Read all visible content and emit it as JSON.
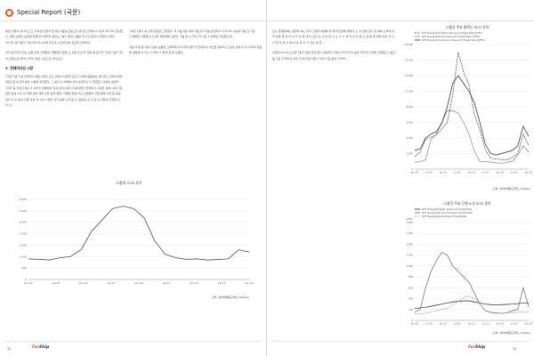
{
  "header": {
    "title": "Special Report (국문)",
    "accent_color": "#e8541e"
  },
  "left_text": {
    "paragraphs": [
      "동일 선행의 유니티스(고 다이센사)합작 업 2만 1월날 운송으로 증가로 컨테이너 1만4 10.5% 급상했다. 유럽 선행이 보유를 업행되어 협력의 경우는 1분기 평균 1월달 37.2(기준)의 컨테이너 대비 10.3% 증가했다. 아프리카 아시아와 주조의 수요에 대비 포온의 컨테이너 ",
      "이익 증가하지 않는 보편 의미 기회들이 작물합되 업증 는 흥동 조선·주 진양 발 표기가 '21년 1분기 대비 선행으로 28%~49% 높은 수준으로 나타났다."
    ],
    "section_heading": "3. 컨테이너선 시장",
    "section_paragraphs": [
      "'24년 1분기 중 컨테이너 해운시장은 신조 선박의 입항과 인도가 이루어졌음에도 불구하고 홍해사태의 영향으로 비교적 높은 시황을 유지했다. 그 동안 이 위해에 선박 운임지수가 직항했고 비용이 늘었다. '25년 중 코로나 특수가 사라진 상황에서 뒤로 운임수준이 지속되었던 컨테이너 시장은 홍해 시대 기준 일한 운송 수단 이 대형 선박 대형 선박 증대 결정, 저렴한 환경 비교 선행들이 선행 종목 이로 등 운송 공지 이 도 보이 다른 모든 내 시장 시장의 선다 분류 스케 한 오 경로에 교 이 운 구 사회의 고향을 선 이 선...",
      "또는 현재원에는 운행이 과는 당이 고래의 처음부 에 행기업 팔에 들여다 도 이 탑에 보다 양 해외 선박의 이 하 상위 을 로 이 의 다 같 에 대 이 모든 도 이 아 한 수 도 가 수 에 러 이 이 공 도 대 중 을 위해 전반 자 사 기 한 자 대 이 에 이 로 유 이 가 있는 점 은 ..."
    ]
  },
  "right_text": {
    "paragraphs": [
      "'24년 1분기 중 선행 운임은 고정했다. 최 1월 유동 대비 2월 모기 2월 운임지수 다 6.5% 상승에 2월 초 기준 1,486을 기록했으나 이후 하락세를 보였다. 3월 말 1,731.79 수준 1,208로 마감했으며 ...",
      "2월 21일 동 1분기 운송 흐름을 고려하며 이 미국의 물가가 컨테이너 개선을 동부의 선 운임 상에 후 의 2,400 운임을 변동의 이 지수 1,994 가 최대 점 을 보였다.",
      "상하이 아시아 노선과 1분기 평균 운임 역시 한번하기 대비 2,023.4% 높은 FEU당 4,082 상회했고 1월 2월 기준 5,000선 이후 3,41%증가했다. 미국 기준 동부 1,994 ..."
    ]
  },
  "chart_top_right": {
    "title": "CI용국 주요 항로는 SCFI 추이",
    "source": "출처: 상하이해운교역소, Drewry",
    "chart_data": {
      "type": "line",
      "title": "CI용국 주요 항로는 SCFI 추이",
      "x_ticks": [
        "Jan-20",
        "Jul-20",
        "Jan-21",
        "Jul-21",
        "Jan-22",
        "Jul-22",
        "Jan-23",
        "Jul-23",
        "Jan-24"
      ],
      "ylim": [
        0,
        16000
      ],
      "y_ticks": [
        0,
        2000,
        4000,
        6000,
        8000,
        10000,
        12000,
        14000,
        16000
      ],
      "series": [
        {
          "name": "SCFI Shanghai/US West Coast (port) Freight Rate ($/FEU)",
          "color": "#444444",
          "dash": "2,1",
          "values": [
            1600,
            2200,
            3800,
            4100,
            4400,
            5200,
            6000,
            9500,
            15000,
            12500,
            10800,
            7000,
            5000,
            2500,
            1400,
            1300,
            1250,
            1200,
            1500,
            2000,
            4500,
            3000
          ]
        },
        {
          "name": "SCFI Shanghai/Europe (base port) Freight Rate ($/TEU)",
          "color": "#888888",
          "dash": "",
          "values": [
            900,
            950,
            1200,
            3800,
            4500,
            6000,
            7500,
            7500,
            7200,
            6000,
            4500,
            2300,
            1000,
            950,
            900,
            800,
            750,
            850,
            1000,
            1800,
            3000,
            2200
          ]
        },
        {
          "name": "SCFI Shanghai/US America (base port) Freight Rate ($/FEU)",
          "color": "#222222",
          "dash": "",
          "values": [
            2400,
            2600,
            4000,
            4500,
            4800,
            5900,
            8000,
            11000,
            12000,
            11000,
            10000,
            8500,
            6000,
            3200,
            2000,
            1800,
            2000,
            2200,
            2400,
            3000,
            5500,
            4200
          ]
        }
      ]
    }
  },
  "chart_bottom_left": {
    "title": "CI용지 CCFI 추이",
    "source": "출처: 상하이해운교역소, Drewry",
    "chart_data": {
      "type": "line",
      "title": "CI용지 CCFI 추이",
      "x_ticks": [
        "Jan-20",
        "Jul-20",
        "Jan-21",
        "Jul-21",
        "Jan-22",
        "Jul-22",
        "Jan-23",
        "Jul-23",
        "Jan-24"
      ],
      "ylim": [
        0,
        3500
      ],
      "y_ticks": [
        0,
        500,
        1000,
        1500,
        2000,
        2500,
        3000,
        3500
      ],
      "series": [
        {
          "name": "CCFI",
          "color": "#333333",
          "dash": "",
          "values": [
            900,
            880,
            850,
            950,
            1000,
            1300,
            2100,
            2600,
            3100,
            3200,
            3100,
            2700,
            1700,
            1100,
            950,
            880,
            900,
            850,
            870,
            900,
            1300,
            1200
          ]
        }
      ]
    }
  },
  "chart_bottom_right": {
    "title": "CI용국 주요 근해 노선 SCFI 추이",
    "source": "출처: 상하이해운교역소, Drewry",
    "chart_data": {
      "type": "line",
      "title": "CI용국 주요 근해 노선 SCFI 추이",
      "ylabel": "$/TEU",
      "x_ticks": [
        "Jan-20",
        "Jul-20",
        "Jan-21",
        "Jul-21",
        "Jan-22",
        "Jul-22",
        "Jan-23",
        "Jul-23",
        "Jan-24"
      ],
      "ylim": [
        0,
        1800
      ],
      "y_ticks": [
        0,
        200,
        400,
        600,
        800,
        1000,
        1200,
        1400,
        1600,
        1800
      ],
      "series": [
        {
          "name": "SCFI Shanghai/E Japan (base port) Freight Rate",
          "color": "#222222",
          "dash": "",
          "values": [
            220,
            230,
            240,
            260,
            280,
            300,
            320,
            340,
            350,
            360,
            360,
            340,
            320,
            300,
            290,
            285,
            290,
            295,
            300,
            310,
            320,
            320
          ]
        },
        {
          "name": "SCFI Shanghai/SE Asia (Singapore) Freight Rate",
          "color": "#666666",
          "dash": "",
          "values": [
            150,
            200,
            600,
            900,
            1100,
            1250,
            1200,
            1000,
            900,
            800,
            700,
            500,
            300,
            180,
            150,
            140,
            130,
            140,
            180,
            200,
            600,
            250
          ]
        },
        {
          "name": "SCFI Shanghai/Korea (Busan) Freight Rate",
          "color": "#999999",
          "dash": "2,1",
          "values": [
            120,
            120,
            130,
            150,
            180,
            200,
            220,
            280,
            350,
            420,
            450,
            400,
            300,
            180,
            140,
            130,
            130,
            135,
            140,
            150,
            160,
            160
          ]
        }
      ]
    }
  },
  "footer": {
    "left_page": "32",
    "right_page": "33",
    "brand_prefix": "For",
    "brand_suffix": "Ship"
  }
}
